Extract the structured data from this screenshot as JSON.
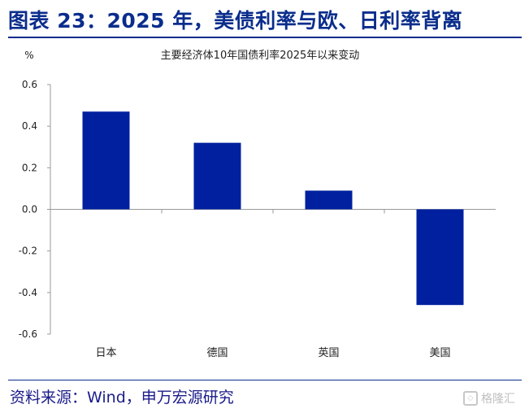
{
  "figure": {
    "title": "图表 23：2025 年，美债利率与欧、日利率背离",
    "source": "资料来源：Wind，申万宏源研究",
    "watermark": "格隆汇"
  },
  "chart_data": {
    "type": "bar",
    "title": "主要经济体10年国债利率2025年以来变动",
    "unit": "%",
    "categories": [
      "日本",
      "德国",
      "英国",
      "美国"
    ],
    "values": [
      0.47,
      0.32,
      0.09,
      -0.46
    ],
    "ylim": [
      -0.6,
      0.6
    ],
    "yticks": [
      0.6,
      0.4,
      0.2,
      0.0,
      -0.2,
      -0.4,
      -0.6
    ],
    "ytick_labels": [
      "0.6",
      "0.4",
      "0.2",
      "0.0",
      "-0.2",
      "-0.4",
      "-0.6"
    ],
    "bar_color": "#00209f",
    "grid": false,
    "legend": "none"
  }
}
